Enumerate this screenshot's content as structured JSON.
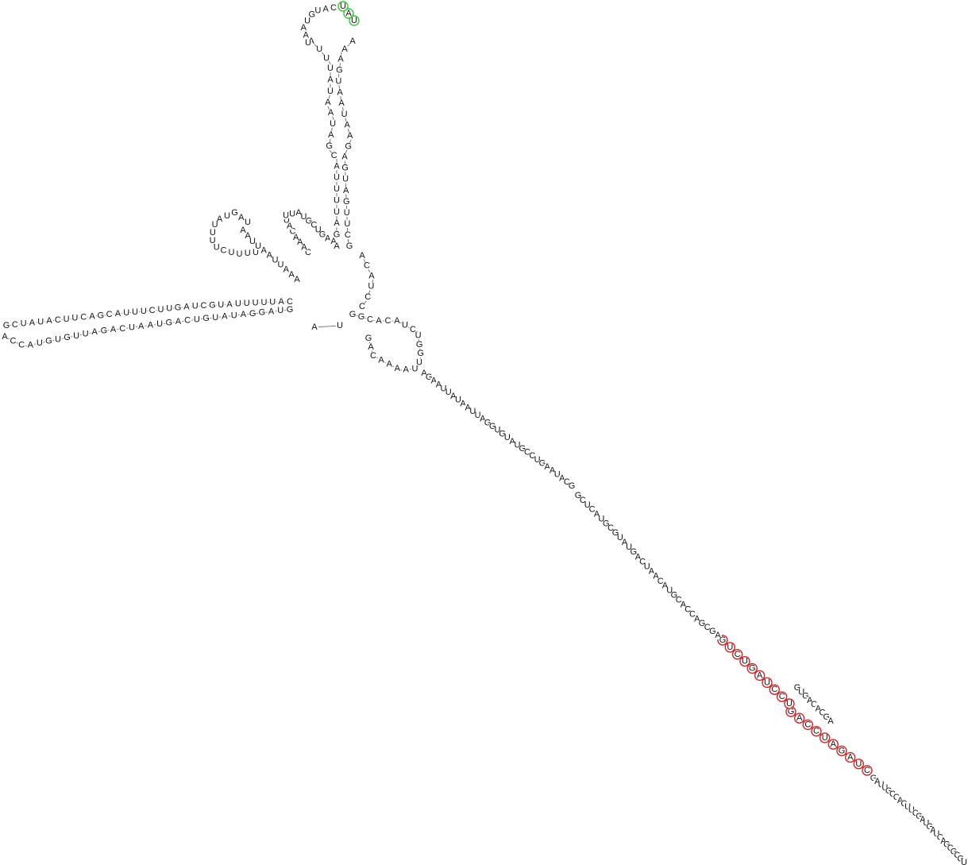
{
  "diagram": {
    "type": "rna-secondary-structure",
    "highlight_colors": {
      "green": "#33cc33",
      "red": "#dd2222"
    },
    "segments": [
      {
        "id": "left-arm-top",
        "seq": "GCUAUACUUCAGCAUUUCUUGAUCGUAUUUUUAC"
      },
      {
        "id": "left-arm-bottom",
        "seq": "ACCAUGUGUUAGACUAAUGACUGUAUAGGAUG"
      },
      {
        "id": "hairpin-a-loop",
        "seq": "UAGUAUUUUCUUUU"
      },
      {
        "id": "hairpin-a-stem",
        "seq": "AAUUAAUUAAA"
      },
      {
        "id": "hairpin-b",
        "seq": "CAAACAUUUAUGCUGAA"
      },
      {
        "id": "top-stem-left",
        "seq": "AUUUAUAAUAGCAUUUUAGA"
      },
      {
        "id": "top-loop",
        "seq": "CAUGUAAU"
      },
      {
        "id": "top-loop-green",
        "seq": "UAU"
      },
      {
        "id": "top-stem-right",
        "seq": "AAAGUAAUAAGAGUAGUUCG"
      },
      {
        "id": "junction",
        "seq": "ACAUCC"
      },
      {
        "id": "junction-link",
        "seq": "AU"
      },
      {
        "id": "hairpin-c",
        "seq": "GGCACAUCUGGUUAAAACAG"
      },
      {
        "id": "diag-upper",
        "seq": "AGAAUUAUAAUUAGGUGUAUGCCUGAAUACG"
      },
      {
        "id": "diag-mid-a",
        "seq": "GCUCAUGCGUAUGACUAACAUGCACCAGCGA"
      },
      {
        "id": "diag-red-1",
        "seq": "GUCUGAUCCU"
      },
      {
        "id": "diag-mid-b",
        "seq": "GUGACACGA"
      },
      {
        "id": "diag-red-2",
        "seq": "GACCUAGAUC"
      },
      {
        "id": "diag-tail",
        "seq": "GAUUGCCACUUCGAUGAUCAGCGCGU"
      }
    ]
  }
}
